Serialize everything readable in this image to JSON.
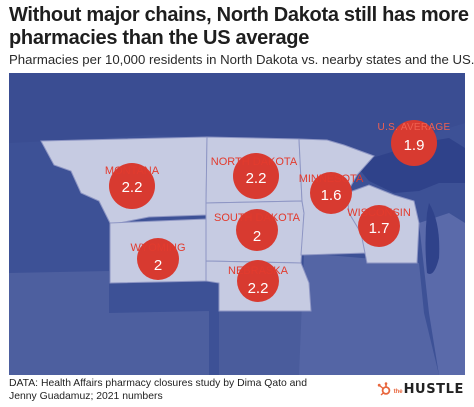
{
  "title": "Without major chains, North Dakota still has more pharmacies than the US average",
  "subtitle": "Pharmacies per 10,000 residents in North Dakota vs. nearby states and the US.",
  "source": "DATA: Health Affairs pharmacy closures study by Dima Qato and Jenny Guadamuz; 2021 numbers",
  "logo": {
    "prefix": "the",
    "word": "HUSTLE"
  },
  "colors": {
    "map_water": "#3b4f93",
    "highlighted_state": "#c6cbe2",
    "other_land": "#5b6ba8",
    "marker": "#d83a30",
    "accent": "#e8663d"
  },
  "markers": [
    {
      "id": "montana",
      "state": "MONTANA",
      "value": "2.2"
    },
    {
      "id": "north-dakota",
      "state": "NORTH DAKOTA",
      "value": "2.2"
    },
    {
      "id": "minnesota",
      "state": "MINNESOTA",
      "value": "1.6"
    },
    {
      "id": "wisconsin",
      "state": "WISCONSIN",
      "value": "1.7"
    },
    {
      "id": "south-dakota",
      "state": "SOUTH DAKOTA",
      "value": "2"
    },
    {
      "id": "wyoming",
      "state": "WYOMING",
      "value": "2"
    },
    {
      "id": "nebraska",
      "state": "NEBRASKA",
      "value": "2.2"
    },
    {
      "id": "us-average",
      "state": "U.S. AVERAGE",
      "value": "1.9"
    }
  ]
}
